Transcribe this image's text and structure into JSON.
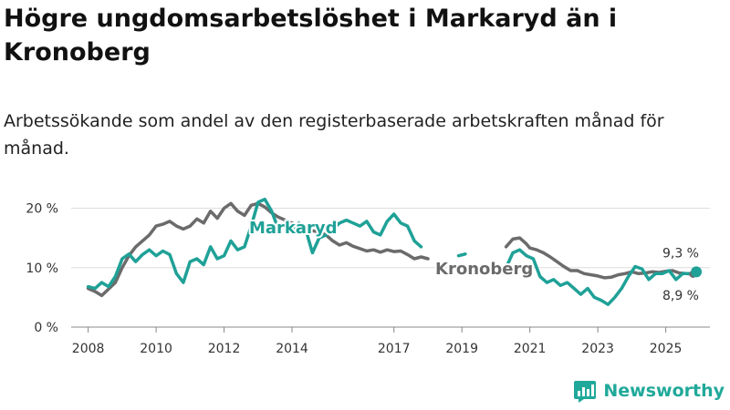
{
  "title": "Högre ungdomsarbetslöshet i Markaryd än i Kronoberg",
  "subtitle": "Arbetssökande som andel av den registerbaserade arbetskraften månad för månad.",
  "brand": {
    "name": "Newsworthy",
    "icon": "bar-chart-logo-icon"
  },
  "colors": {
    "markaryd": "#1fa197",
    "kronoberg": "#6b6b6b",
    "grid": "#dddddd",
    "axis": "#888888"
  },
  "chart_data": {
    "type": "line",
    "x_unit": "year",
    "xlim": [
      2007.5,
      2026.3
    ],
    "ylim": [
      0,
      21
    ],
    "y_ticks": [
      {
        "value": 0,
        "label": "0 %"
      },
      {
        "value": 10,
        "label": "10 %"
      },
      {
        "value": 20,
        "label": "20 %"
      }
    ],
    "x_ticks": [
      {
        "value": 2008,
        "label": "2008"
      },
      {
        "value": 2010,
        "label": "2010"
      },
      {
        "value": 2012,
        "label": "2012"
      },
      {
        "value": 2014,
        "label": "2014"
      },
      {
        "value": 2017,
        "label": "2017"
      },
      {
        "value": 2019,
        "label": "2019"
      },
      {
        "value": 2021,
        "label": "2021"
      },
      {
        "value": 2023,
        "label": "2023"
      },
      {
        "value": 2025,
        "label": "2025"
      }
    ],
    "series": [
      {
        "name": "Kronoberg",
        "color_key": "kronoberg",
        "label": "Kronoberg",
        "end_label": "8,9 %",
        "segments": [
          [
            [
              2008.0,
              6.5
            ],
            [
              2008.2,
              6.0
            ],
            [
              2008.4,
              5.3
            ],
            [
              2008.6,
              6.4
            ],
            [
              2008.8,
              7.5
            ],
            [
              2009.0,
              10.0
            ],
            [
              2009.2,
              12.0
            ],
            [
              2009.4,
              13.5
            ],
            [
              2009.6,
              14.5
            ],
            [
              2009.8,
              15.5
            ],
            [
              2010.0,
              17.0
            ],
            [
              2010.2,
              17.3
            ],
            [
              2010.4,
              17.8
            ],
            [
              2010.6,
              17.0
            ],
            [
              2010.8,
              16.5
            ],
            [
              2011.0,
              17.0
            ],
            [
              2011.2,
              18.2
            ],
            [
              2011.4,
              17.5
            ],
            [
              2011.6,
              19.5
            ],
            [
              2011.8,
              18.3
            ],
            [
              2012.0,
              20.0
            ],
            [
              2012.2,
              20.8
            ],
            [
              2012.4,
              19.5
            ],
            [
              2012.6,
              18.8
            ],
            [
              2012.8,
              20.5
            ],
            [
              2013.0,
              20.8
            ],
            [
              2013.2,
              20.2
            ],
            [
              2013.4,
              19.2
            ],
            [
              2013.6,
              18.5
            ],
            [
              2013.8,
              18.0
            ],
            [
              2014.0,
              17.5
            ],
            [
              2014.2,
              17.0
            ],
            [
              2014.4,
              16.5
            ],
            [
              2014.6,
              16.2
            ],
            [
              2014.8,
              16.0
            ],
            [
              2015.0,
              15.5
            ],
            [
              2015.2,
              14.5
            ],
            [
              2015.4,
              13.8
            ],
            [
              2015.6,
              14.2
            ],
            [
              2015.8,
              13.6
            ],
            [
              2016.0,
              13.2
            ],
            [
              2016.2,
              12.8
            ],
            [
              2016.4,
              13.0
            ],
            [
              2016.6,
              12.6
            ],
            [
              2016.8,
              13.0
            ],
            [
              2017.0,
              12.7
            ],
            [
              2017.2,
              12.8
            ],
            [
              2017.4,
              12.2
            ],
            [
              2017.6,
              11.5
            ],
            [
              2017.8,
              11.8
            ],
            [
              2018.0,
              11.5
            ]
          ],
          [
            [
              2020.3,
              13.5
            ],
            [
              2020.5,
              14.8
            ],
            [
              2020.7,
              15.0
            ],
            [
              2020.9,
              14.0
            ],
            [
              2021.0,
              13.3
            ],
            [
              2021.2,
              13.0
            ],
            [
              2021.4,
              12.5
            ],
            [
              2021.6,
              11.8
            ],
            [
              2021.8,
              11.0
            ],
            [
              2022.0,
              10.2
            ],
            [
              2022.2,
              9.5
            ],
            [
              2022.4,
              9.5
            ],
            [
              2022.6,
              9.0
            ],
            [
              2022.8,
              8.8
            ],
            [
              2023.0,
              8.6
            ],
            [
              2023.2,
              8.3
            ],
            [
              2023.4,
              8.4
            ],
            [
              2023.6,
              8.8
            ],
            [
              2023.8,
              9.0
            ],
            [
              2024.0,
              9.3
            ],
            [
              2024.2,
              9.0
            ],
            [
              2024.4,
              9.1
            ],
            [
              2024.6,
              9.3
            ],
            [
              2024.8,
              9.2
            ],
            [
              2025.0,
              9.4
            ],
            [
              2025.2,
              9.5
            ],
            [
              2025.4,
              9.1
            ],
            [
              2025.6,
              9.0
            ],
            [
              2025.8,
              8.9
            ]
          ]
        ]
      },
      {
        "name": "Markaryd",
        "color_key": "markaryd",
        "label": "Markaryd",
        "end_label": "9,3 %",
        "segments": [
          [
            [
              2008.0,
              6.8
            ],
            [
              2008.2,
              6.5
            ],
            [
              2008.4,
              7.5
            ],
            [
              2008.6,
              6.8
            ],
            [
              2008.8,
              8.5
            ],
            [
              2009.0,
              11.5
            ],
            [
              2009.2,
              12.3
            ],
            [
              2009.4,
              11.0
            ],
            [
              2009.6,
              12.2
            ],
            [
              2009.8,
              13.0
            ],
            [
              2010.0,
              12.0
            ],
            [
              2010.2,
              12.8
            ],
            [
              2010.4,
              12.2
            ],
            [
              2010.6,
              9.0
            ],
            [
              2010.8,
              7.5
            ],
            [
              2011.0,
              11.0
            ],
            [
              2011.2,
              11.5
            ],
            [
              2011.4,
              10.5
            ],
            [
              2011.6,
              13.5
            ],
            [
              2011.8,
              11.5
            ],
            [
              2012.0,
              12.0
            ],
            [
              2012.2,
              14.5
            ],
            [
              2012.4,
              13.0
            ],
            [
              2012.6,
              13.5
            ],
            [
              2012.8,
              17.0
            ],
            [
              2013.0,
              21.0
            ],
            [
              2013.2,
              21.5
            ],
            [
              2013.4,
              19.5
            ],
            [
              2013.6,
              16.5
            ],
            [
              2013.8,
              17.5
            ],
            [
              2014.0,
              16.0
            ],
            [
              2014.2,
              17.5
            ],
            [
              2014.4,
              16.5
            ],
            [
              2014.6,
              12.5
            ],
            [
              2014.8,
              15.0
            ],
            [
              2015.0,
              15.5
            ],
            [
              2015.2,
              16.5
            ],
            [
              2015.4,
              17.5
            ],
            [
              2015.6,
              18.0
            ],
            [
              2015.8,
              17.5
            ],
            [
              2016.0,
              17.0
            ],
            [
              2016.2,
              17.8
            ],
            [
              2016.4,
              16.0
            ],
            [
              2016.6,
              15.5
            ],
            [
              2016.8,
              17.8
            ],
            [
              2017.0,
              19.0
            ],
            [
              2017.2,
              17.5
            ],
            [
              2017.4,
              17.0
            ],
            [
              2017.6,
              14.5
            ],
            [
              2017.8,
              13.5
            ]
          ],
          [
            [
              2018.9,
              12.0
            ],
            [
              2019.1,
              12.3
            ]
          ],
          [
            [
              2020.3,
              10.0
            ],
            [
              2020.5,
              12.5
            ],
            [
              2020.7,
              13.0
            ],
            [
              2020.9,
              12.0
            ],
            [
              2021.1,
              11.5
            ],
            [
              2021.3,
              8.5
            ],
            [
              2021.5,
              7.5
            ],
            [
              2021.7,
              8.0
            ],
            [
              2021.9,
              7.0
            ],
            [
              2022.1,
              7.5
            ],
            [
              2022.3,
              6.5
            ],
            [
              2022.5,
              5.5
            ],
            [
              2022.7,
              6.5
            ],
            [
              2022.9,
              5.0
            ],
            [
              2023.1,
              4.5
            ],
            [
              2023.3,
              3.8
            ],
            [
              2023.5,
              5.0
            ],
            [
              2023.7,
              6.5
            ],
            [
              2023.9,
              8.5
            ],
            [
              2024.1,
              10.2
            ],
            [
              2024.3,
              9.8
            ],
            [
              2024.5,
              8.0
            ],
            [
              2024.7,
              9.0
            ],
            [
              2024.9,
              9.0
            ],
            [
              2025.1,
              9.5
            ],
            [
              2025.3,
              8.0
            ],
            [
              2025.5,
              9.0
            ],
            [
              2025.7,
              9.0
            ],
            [
              2025.9,
              9.3
            ]
          ]
        ]
      }
    ]
  }
}
